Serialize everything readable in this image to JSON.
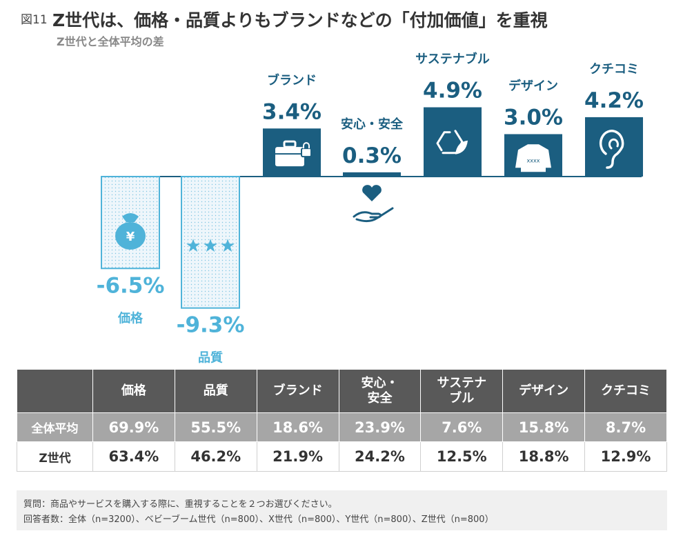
{
  "header": {
    "fig_label": "図11",
    "title": "Z世代は、価格・品質よりもブランドなどの「付加価値」を重視",
    "subtitle": "Z世代と全体平均の差"
  },
  "colors": {
    "positive": "#1b5e80",
    "negative": "#4fb3d9",
    "negative_fill": "#eef6fb",
    "baseline": "#1b5e80"
  },
  "chart_data": {
    "type": "bar",
    "title": "Z世代と全体平均の差",
    "categories": [
      "価格",
      "品質",
      "ブランド",
      "安心・安全",
      "サステナブル",
      "デザイン",
      "クチコミ"
    ],
    "values": [
      -6.5,
      -9.3,
      3.4,
      0.3,
      4.9,
      3.0,
      4.2
    ],
    "value_labels": [
      "-6.5%",
      "-9.3%",
      "3.4%",
      "0.3%",
      "4.9%",
      "3.0%",
      "4.2%"
    ],
    "icons": [
      "money-bag-icon",
      "stars-icon",
      "briefcase-icon",
      "heart-hand-icon",
      "recycle-icon",
      "sweater-icon",
      "ear-icon"
    ],
    "unit": "%",
    "ylim": [
      -10,
      6
    ],
    "grid": false,
    "legend": "none"
  },
  "table": {
    "headers": [
      "",
      "価格",
      "品質",
      "ブランド",
      "安心・\n安全",
      "サステナ\nブル",
      "デザイン",
      "クチコミ"
    ],
    "rows": [
      {
        "label": "全体平均",
        "values": [
          "69.9%",
          "55.5%",
          "18.6%",
          "23.9%",
          "7.6%",
          "15.8%",
          "8.7%"
        ]
      },
      {
        "label": "Z世代",
        "values": [
          "63.4%",
          "46.2%",
          "21.9%",
          "24.2%",
          "12.5%",
          "18.8%",
          "12.9%"
        ]
      }
    ]
  },
  "notes": {
    "question": "質問：商品やサービスを購入する際に、重視することを２つお選びください。",
    "respondents": "回答者数：全体（n=3200）、ベビーブーム世代（n=800）、X世代（n=800）、Y世代（n=800）、Z世代（n=800）"
  }
}
